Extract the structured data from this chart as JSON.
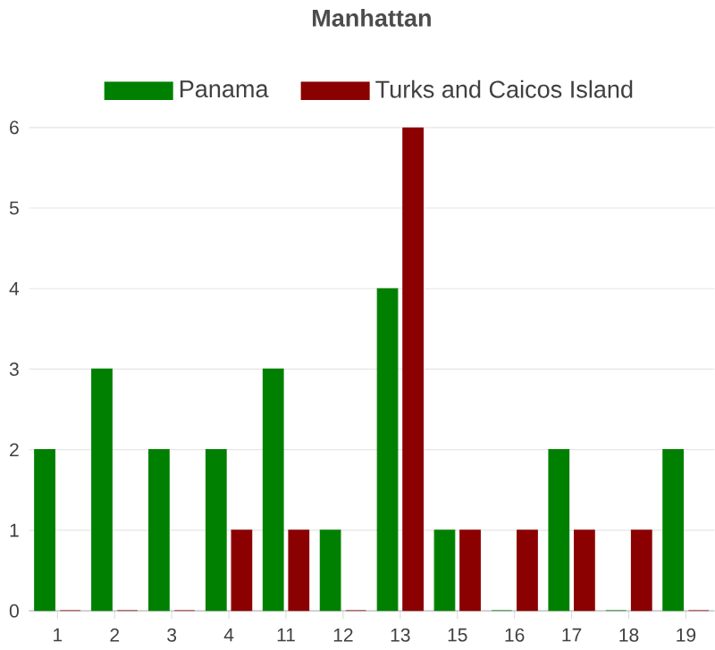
{
  "chart_data": {
    "type": "bar",
    "title": "Manhattan",
    "categories": [
      "1",
      "2",
      "3",
      "4",
      "11",
      "12",
      "13",
      "15",
      "16",
      "17",
      "18",
      "19"
    ],
    "series": [
      {
        "name": "Panama",
        "color": "#008000",
        "values": [
          2,
          3,
          2,
          2,
          3,
          1,
          4,
          1,
          0,
          2,
          0,
          2
        ]
      },
      {
        "name": "Turks and Caicos Island",
        "color": "#8b0000",
        "values": [
          0,
          0,
          0,
          1,
          1,
          0,
          6,
          1,
          1,
          1,
          1,
          0
        ]
      }
    ],
    "ylim": [
      0,
      6
    ],
    "yticks": [
      0,
      1,
      2,
      3,
      4,
      5,
      6
    ],
    "grid": "y",
    "legend": "top"
  }
}
